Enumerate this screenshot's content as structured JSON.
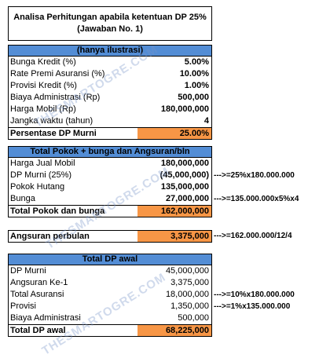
{
  "title": [
    "Analisa Perhitungan apabila ketentuan DP 25%",
    "(Jawaban No. 1)"
  ],
  "watermark": "THESMARTOGRE.COM",
  "blocks": [
    {
      "header": "(hanya ilustrasi)",
      "rows": [
        {
          "label": "Bunga Kredit (%)",
          "value": "5.00%"
        },
        {
          "label": "Rate Premi Asuransi (%)",
          "value": "10.00%"
        },
        {
          "label": "Provisi Kredit (%)",
          "value": "1.00%"
        },
        {
          "label": "Biaya Administrasi (Rp)",
          "value": "500,000"
        },
        {
          "label": "Harga Mobil (Rp)",
          "value": "180,000,000"
        },
        {
          "label": "Jangka waktu (tahun)",
          "value": "4"
        },
        {
          "label": "Persentase DP Murni",
          "value": "25.00%",
          "bold": true,
          "highlight": true
        }
      ]
    },
    {
      "header": "Total Pokok + bunga dan Angsuran/bln",
      "rows": [
        {
          "label": "Harga Jual Mobil",
          "value": "180,000,000"
        },
        {
          "label": "DP Murni (25%)",
          "value": "(45,000,000)",
          "note": "--->=25%x180.000.000"
        },
        {
          "label": "Pokok Hutang",
          "value": "135,000,000"
        },
        {
          "label": "Bunga",
          "value": "27,000,000",
          "note": "--->=135.000.000x5%x4"
        },
        {
          "label": "Total Pokok dan bunga",
          "value": "162,000,000",
          "bold": true,
          "highlight": true
        }
      ]
    },
    {
      "rows": [
        {
          "label": "Angsuran perbulan",
          "value": "3,375,000",
          "bold": true,
          "highlight": true,
          "note": "--->=162.000.000/12/4"
        }
      ]
    },
    {
      "header": "Total DP awal",
      "rows": [
        {
          "label": "DP Murni",
          "value": "45,000,000",
          "plain": true
        },
        {
          "label": "Angsuran Ke-1",
          "value": "3,375,000",
          "plain": true
        },
        {
          "label": "Total Asuransi",
          "value": "18,000,000",
          "plain": true,
          "note": "--->=10%x180.000.000"
        },
        {
          "label": "Provisi",
          "value": "1,350,000",
          "plain": true,
          "note": "--->=1%x135.000.000"
        },
        {
          "label": "Biaya Administrasi",
          "value": "500,000",
          "plain": true
        },
        {
          "label": "Total DP awal",
          "value": "68,225,000",
          "bold": true,
          "highlight": true
        }
      ]
    }
  ]
}
